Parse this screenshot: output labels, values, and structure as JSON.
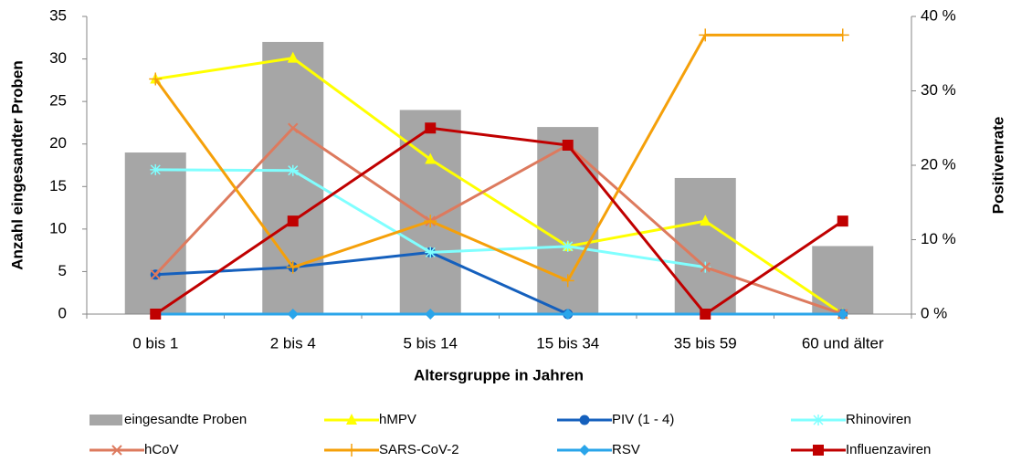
{
  "chart_data": {
    "type": "bar",
    "x_label": "Altersgruppe in Jahren",
    "y_label": "Anzahl eingesandter Proben",
    "y2_label": "Positivenrate",
    "categories": [
      "0 bis 1",
      "2 bis 4",
      "5 bis 14",
      "15 bis 34",
      "35 bis 59",
      "60 und älter"
    ],
    "ylim": [
      0,
      35
    ],
    "yticks": [
      0,
      5,
      10,
      15,
      20,
      25,
      30,
      35
    ],
    "y2lim": [
      0,
      40
    ],
    "y2ticks": [
      {
        "value": 0,
        "label": "0 %"
      },
      {
        "value": 10,
        "label": "10 %"
      },
      {
        "value": 20,
        "label": "20 %"
      },
      {
        "value": 30,
        "label": "30 %"
      },
      {
        "value": 40,
        "label": "40 %"
      }
    ],
    "series": [
      {
        "name": "eingesandte Proben",
        "type": "bar",
        "color": "#a6a6a6",
        "values": [
          19,
          32,
          24,
          22,
          16,
          8
        ]
      },
      {
        "name": "hMPV",
        "type": "line",
        "axis": "y2",
        "marker": "triangle",
        "color": "#ffff00",
        "values": [
          31.6,
          34.4,
          20.8,
          9.1,
          12.5,
          0
        ]
      },
      {
        "name": "PIV (1 - 4)",
        "type": "line",
        "axis": "y2",
        "marker": "circle",
        "color": "#1560bd",
        "values": [
          5.3,
          6.3,
          8.3,
          0,
          0,
          0
        ]
      },
      {
        "name": "Rhinoviren",
        "type": "line",
        "axis": "y2",
        "marker": "star",
        "color": "#80ffff",
        "values": [
          19.4,
          19.3,
          8.3,
          9.1,
          6.3,
          null
        ]
      },
      {
        "name": "hCoV",
        "type": "line",
        "axis": "y2",
        "marker": "x",
        "color": "#dd7a5e",
        "values": [
          5.3,
          25,
          12.5,
          22.7,
          6.3,
          0
        ]
      },
      {
        "name": "SARS-CoV-2",
        "type": "line",
        "axis": "y2",
        "marker": "plus",
        "color": "#f5a00a",
        "values": [
          31.6,
          6.3,
          12.5,
          4.5,
          37.5,
          37.5
        ]
      },
      {
        "name": "RSV",
        "type": "line",
        "axis": "y2",
        "marker": "diamond",
        "color": "#2aa5ea",
        "values": [
          0,
          0,
          0,
          0,
          0,
          0
        ]
      },
      {
        "name": "Influenzaviren",
        "type": "line",
        "axis": "y2",
        "marker": "square",
        "color": "#c00000",
        "values": [
          0,
          12.5,
          25,
          22.7,
          0,
          12.5
        ]
      }
    ]
  }
}
